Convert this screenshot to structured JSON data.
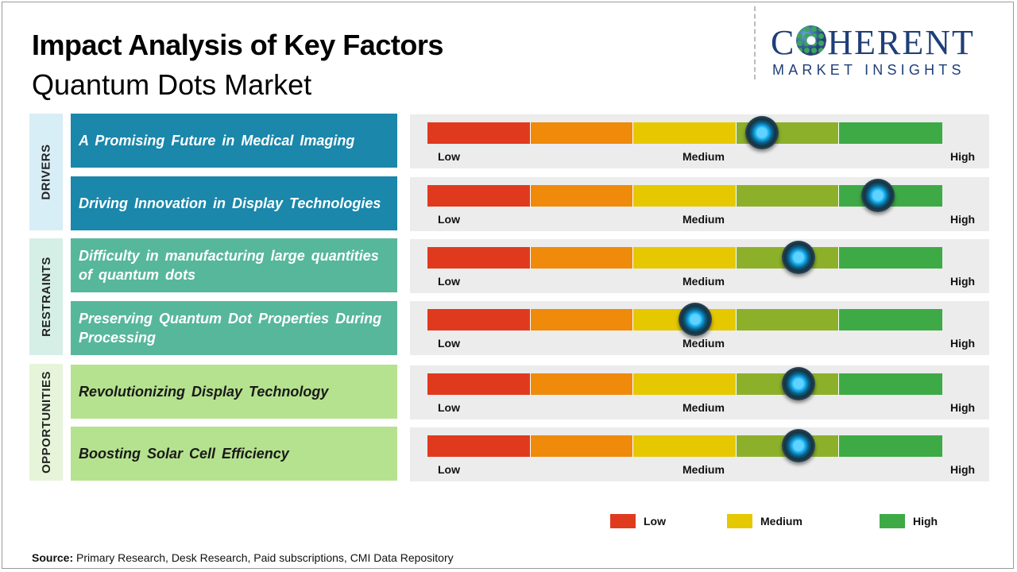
{
  "header": {
    "title": "Impact Analysis of Key Factors",
    "subtitle": "Quantum Dots Market"
  },
  "logo": {
    "main_before": "C",
    "main_after": "HERENT",
    "sub": "MARKET INSIGHTS"
  },
  "scale_labels": {
    "low": "Low",
    "medium": "Medium",
    "high": "High"
  },
  "colors": {
    "segments": [
      "#e03a1e",
      "#ef8a0b",
      "#e6c800",
      "#8db02a",
      "#3eaa46"
    ],
    "drivers": "#1a87ab",
    "restraints": "#57b79b",
    "opportunities": "#b5e28e"
  },
  "categories": [
    {
      "label": "DRIVERS",
      "color": "#d8eef6",
      "factors": [
        {
          "text": "A Promising Future in Medical Imaging",
          "impact": 0.65
        },
        {
          "text": "Driving Innovation in Display Technologies",
          "impact": 0.875
        }
      ]
    },
    {
      "label": "RESTRAINTS",
      "color": "#d6efe6",
      "factors": [
        {
          "text": "Difficulty in manufacturing large quantities of quantum dots",
          "impact": 0.72
        },
        {
          "text": "Preserving Quantum Dot Properties During Processing",
          "impact": 0.52
        }
      ]
    },
    {
      "label": "OPPORTUNITIES",
      "color": "#e6f5da",
      "factors": [
        {
          "text": "Revolutionizing Display Technology",
          "impact": 0.72
        },
        {
          "text": "Boosting Solar Cell Efficiency",
          "impact": 0.72
        }
      ]
    }
  ],
  "legend": [
    {
      "label": "Low",
      "color": "#e03a1e"
    },
    {
      "label": "Medium",
      "color": "#e6c800"
    },
    {
      "label": "High",
      "color": "#3eaa46"
    }
  ],
  "source": {
    "prefix": "Source:",
    "text": "Primary Research, Desk Research, Paid subscriptions, CMI Data Repository"
  }
}
